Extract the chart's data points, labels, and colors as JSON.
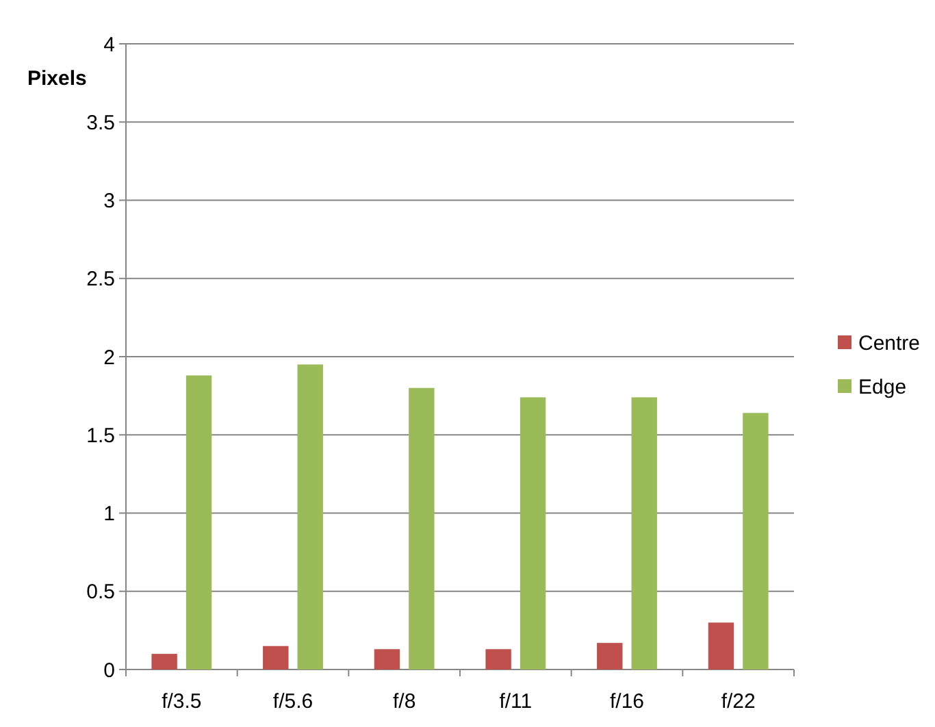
{
  "chart_data": {
    "type": "bar",
    "ylabel": "Pixels",
    "categories": [
      "f/3.5",
      "f/5.6",
      "f/8",
      "f/11",
      "f/16",
      "f/22"
    ],
    "series": [
      {
        "name": "Centre",
        "color": "#c0504d",
        "values": [
          0.1,
          0.15,
          0.13,
          0.13,
          0.17,
          0.3
        ]
      },
      {
        "name": "Edge",
        "color": "#9bbb59",
        "values": [
          1.88,
          1.95,
          1.8,
          1.74,
          1.74,
          1.64
        ]
      }
    ],
    "ylim": [
      0,
      4
    ],
    "yticks": [
      0,
      0.5,
      1,
      1.5,
      2,
      2.5,
      3,
      3.5,
      4
    ],
    "grid": "y",
    "legend": "right"
  }
}
